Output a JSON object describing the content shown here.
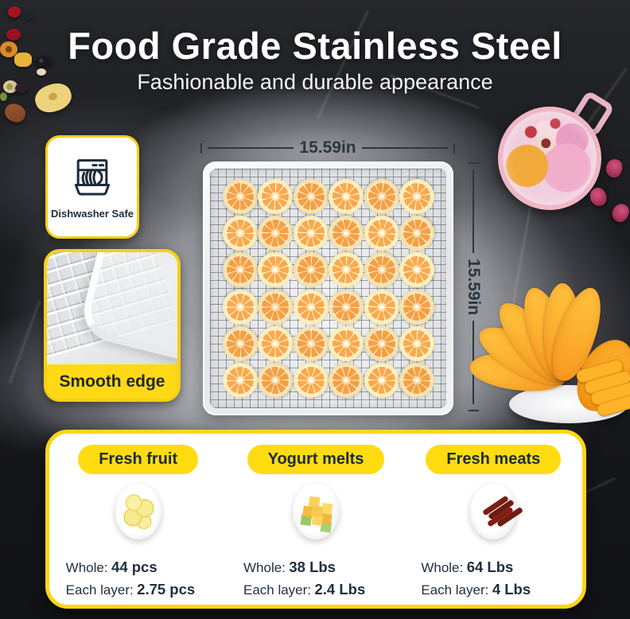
{
  "header": {
    "title": "Food Grade Stainless Steel",
    "subtitle": "Fashionable and durable appearance"
  },
  "features": {
    "dishwasher_safe": {
      "icon": "dishwasher-icon",
      "label": "Dishwasher Safe"
    },
    "smooth_edge": {
      "label": "Smooth edge",
      "photo": "tray corner close-up with wire mesh"
    }
  },
  "dimensions": {
    "width": "15.59in",
    "height": "15.59in"
  },
  "tray": {
    "rows": 6,
    "cols": 6,
    "contents": "dried orange slices on stainless mesh tray"
  },
  "capacity_panel": {
    "columns": [
      {
        "label": "Fresh fruit",
        "photo": "plate of dried lemon slices",
        "stats": [
          {
            "label": "Whole:",
            "value": "44 pcs"
          },
          {
            "label": "Each layer:",
            "value": "2.75 pcs"
          }
        ]
      },
      {
        "label": "Yogurt melts",
        "photo": "plate of yogurt cubes",
        "stats": [
          {
            "label": "Whole:",
            "value": "38 Lbs"
          },
          {
            "label": "Each layer:",
            "value": "2.4 Lbs"
          }
        ]
      },
      {
        "label": "Fresh meats",
        "photo": "plate of jerky strips",
        "stats": [
          {
            "label": "Whole:",
            "value": "64 Lbs"
          },
          {
            "label": "Each layer:",
            "value": "4 Lbs"
          }
        ]
      }
    ]
  },
  "decor": {
    "top_left": "scattered dried fruits and nuts",
    "top_right": "glass cup of flower tea with rosebuds",
    "right": "fanned dried mango slices"
  },
  "colors": {
    "accent_yellow": "#FFD915",
    "text_dark": "#1E2B38",
    "dim_line": "#2B3743",
    "slice_orange": "#F5A044"
  }
}
